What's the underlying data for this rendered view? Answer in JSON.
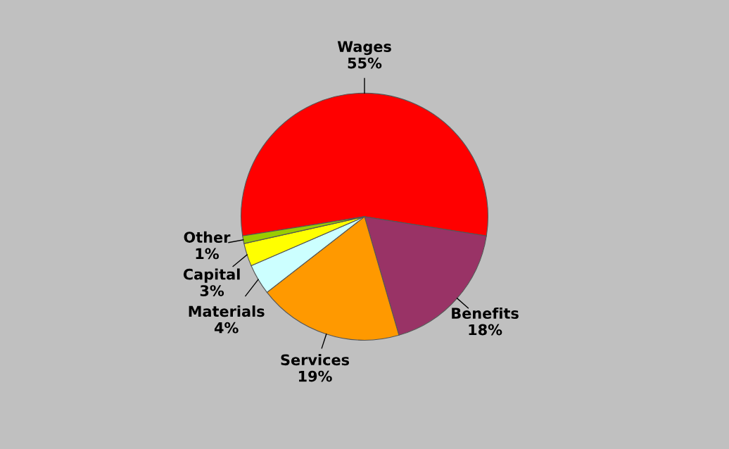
{
  "chart_data": {
    "type": "pie",
    "categories": [
      "Wages",
      "Benefits",
      "Services",
      "Materials",
      "Capital",
      "Other"
    ],
    "values": [
      55,
      18,
      19,
      4,
      3,
      1
    ],
    "value_labels": [
      "55%",
      "18%",
      "19%",
      "4%",
      "3%",
      "1%"
    ],
    "colors": [
      "#ff0000",
      "#993366",
      "#ff9900",
      "#ccffff",
      "#ffff00",
      "#99cc00"
    ],
    "legend": false
  }
}
